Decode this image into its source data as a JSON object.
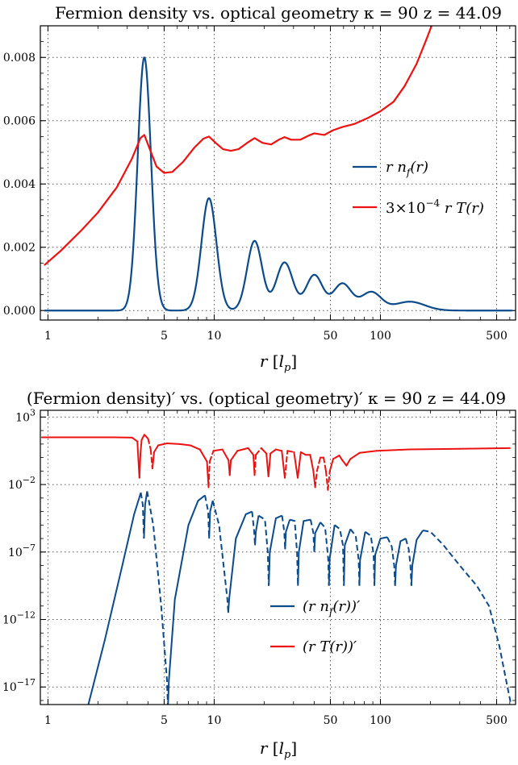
{
  "chart_data": [
    {
      "type": "line",
      "title": "Fermion density vs. optical geometry  κ = 90   z = 44.09",
      "xlabel": "r  [l_p]",
      "xlabel_parts": {
        "r": "r",
        "unit_open": "[",
        "unit_var": "l",
        "unit_sub": "p",
        "unit_close": "]"
      },
      "xscale": "log",
      "xlim": [
        0.9,
        650
      ],
      "xticks": [
        1,
        5,
        10,
        50,
        100,
        500
      ],
      "xtick_labels": [
        "1",
        "5",
        "10",
        "50",
        "100",
        "500"
      ],
      "ylim": [
        -0.0003,
        0.009
      ],
      "yticks": [
        0.0,
        0.002,
        0.004,
        0.006,
        0.008
      ],
      "ytick_labels": [
        "0.000",
        "0.002",
        "0.004",
        "0.006",
        "0.008"
      ],
      "grid": true,
      "legend_position": "right",
      "series": [
        {
          "name": "r n_f(r)",
          "name_parts": {
            "a": "r n",
            "sub": "f",
            "b": "(r)"
          },
          "color": "#0b4a8b",
          "peaks": [
            {
              "center": 3.8,
              "height": 0.008,
              "width": 0.04
            },
            {
              "center": 9.3,
              "height": 0.00355,
              "width": 0.045
            },
            {
              "center": 17.5,
              "height": 0.0022,
              "width": 0.045
            },
            {
              "center": 26.5,
              "height": 0.00152,
              "width": 0.05
            },
            {
              "center": 40,
              "height": 0.00112,
              "width": 0.05
            },
            {
              "center": 59,
              "height": 0.00085,
              "width": 0.055
            },
            {
              "center": 88,
              "height": 0.00058,
              "width": 0.06
            },
            {
              "center": 150,
              "height": 0.00028,
              "width": 0.09
            }
          ]
        },
        {
          "name": "3×10^-4 r T(r)",
          "name_parts": {
            "a": "3×10",
            "sup": "−4",
            "b": " r T(r)"
          },
          "color": "#ee1111",
          "points": [
            [
              0.95,
              0.00143
            ],
            [
              1.2,
              0.0019
            ],
            [
              1.6,
              0.00255
            ],
            [
              2.0,
              0.0031
            ],
            [
              2.6,
              0.0039
            ],
            [
              3.2,
              0.0048
            ],
            [
              3.6,
              0.00545
            ],
            [
              3.8,
              0.00555
            ],
            [
              4.1,
              0.0051
            ],
            [
              4.5,
              0.00455
            ],
            [
              5.0,
              0.00435
            ],
            [
              5.6,
              0.00438
            ],
            [
              6.5,
              0.0047
            ],
            [
              7.6,
              0.00515
            ],
            [
              8.6,
              0.00543
            ],
            [
              9.3,
              0.0055
            ],
            [
              10.2,
              0.0053
            ],
            [
              11.3,
              0.0051
            ],
            [
              12.6,
              0.00505
            ],
            [
              14.0,
              0.0051
            ],
            [
              15.8,
              0.0053
            ],
            [
              17.5,
              0.00545
            ],
            [
              19.5,
              0.0053
            ],
            [
              22.0,
              0.00525
            ],
            [
              24.5,
              0.0054
            ],
            [
              26.5,
              0.00548
            ],
            [
              29,
              0.0054
            ],
            [
              33,
              0.0054
            ],
            [
              37,
              0.00553
            ],
            [
              40,
              0.0056
            ],
            [
              46,
              0.00555
            ],
            [
              52,
              0.0057
            ],
            [
              59,
              0.0058
            ],
            [
              70,
              0.0059
            ],
            [
              85,
              0.0061
            ],
            [
              100,
              0.0063
            ],
            [
              120,
              0.0066
            ],
            [
              140,
              0.0071
            ],
            [
              165,
              0.0078
            ],
            [
              190,
              0.0086
            ],
            [
              210,
              0.0092
            ]
          ]
        }
      ]
    },
    {
      "type": "line",
      "title": "(Fermion density)′ vs. (optical geometry)′  κ = 90   z = 44.09",
      "xlabel": "r  [l_p]",
      "xlabel_parts": {
        "r": "r",
        "unit_open": "[",
        "unit_var": "l",
        "unit_sub": "p",
        "unit_close": "]"
      },
      "xscale": "log",
      "yscale": "log",
      "xlim": [
        0.9,
        650
      ],
      "xticks": [
        1,
        5,
        10,
        50,
        100,
        500
      ],
      "xtick_labels": [
        "1",
        "5",
        "10",
        "50",
        "100",
        "500"
      ],
      "ylim_log10": [
        -18.3,
        3.5
      ],
      "yticks_log10": [
        3,
        -2,
        -7,
        -12,
        -17
      ],
      "ytick_labels": [
        "10^3",
        "10^-2",
        "10^-7",
        "10^-12",
        "10^-17"
      ],
      "ytick_label_parts": [
        {
          "base": "10",
          "exp": "3"
        },
        {
          "base": "10",
          "exp": "−2"
        },
        {
          "base": "10",
          "exp": "−7"
        },
        {
          "base": "10",
          "exp": "−12"
        },
        {
          "base": "10",
          "exp": "−17"
        }
      ],
      "grid": true,
      "legend_position": "center-right",
      "line_style_note": "solid where derivative positive, dashed where negative",
      "series": [
        {
          "name": "(r n_f(r))′",
          "name_parts": {
            "a": "(r n",
            "sub": "f",
            "b": "(r))′"
          },
          "color": "#0b4a8b",
          "points_log10": [
            [
              1.75,
              -18.3
            ],
            [
              2.2,
              -13.5
            ],
            [
              2.8,
              -8
            ],
            [
              3.3,
              -4.2
            ],
            [
              3.62,
              -2.6
            ],
            [
              3.72,
              -3.5
            ],
            [
              3.78,
              -6
            ],
            [
              3.84,
              -3.5
            ],
            [
              3.95,
              -2.5
            ],
            [
              4.3,
              -5
            ],
            [
              4.8,
              -11
            ],
            [
              5.2,
              -16.5
            ],
            [
              5.27,
              -18.5
            ],
            [
              5.34,
              -16.5
            ],
            [
              5.8,
              -10.5
            ],
            [
              7.0,
              -5
            ],
            [
              8.0,
              -3.2
            ],
            [
              8.8,
              -2.8
            ],
            [
              9.2,
              -4
            ],
            [
              9.32,
              -6
            ],
            [
              9.45,
              -4
            ],
            [
              9.8,
              -3.2
            ],
            [
              10.7,
              -5
            ],
            [
              12.0,
              -10.5
            ],
            [
              12.15,
              -11.5
            ],
            [
              12.3,
              -10.5
            ],
            [
              13.5,
              -6
            ],
            [
              15.5,
              -4.2
            ],
            [
              16.9,
              -4.0
            ],
            [
              17.4,
              -5.5
            ],
            [
              17.6,
              -6.5
            ],
            [
              17.8,
              -5.5
            ],
            [
              18.5,
              -4.3
            ],
            [
              20.2,
              -4.6
            ],
            [
              21.0,
              -7
            ],
            [
              21.3,
              -9.5
            ],
            [
              21.6,
              -7
            ],
            [
              23.5,
              -4.5
            ],
            [
              25.6,
              -4.3
            ],
            [
              26.4,
              -5.5
            ],
            [
              26.7,
              -6.8
            ],
            [
              27.0,
              -5.5
            ],
            [
              28.5,
              -4.6
            ],
            [
              30.5,
              -4.7
            ],
            [
              31.5,
              -7
            ],
            [
              31.9,
              -9.5
            ],
            [
              32.3,
              -7
            ],
            [
              34.5,
              -4.7
            ],
            [
              38,
              -4.6
            ],
            [
              39.5,
              -5.6
            ],
            [
              40,
              -7
            ],
            [
              40.5,
              -5.6
            ],
            [
              43.5,
              -4.8
            ],
            [
              46.5,
              -5.2
            ],
            [
              48.5,
              -7.5
            ],
            [
              49,
              -9.5
            ],
            [
              49.5,
              -7.5
            ],
            [
              53,
              -5
            ],
            [
              57,
              -5.3
            ],
            [
              59.5,
              -6.5
            ],
            [
              60.3,
              -9.5
            ],
            [
              61,
              -6.5
            ],
            [
              66,
              -5.3
            ],
            [
              71,
              -5.8
            ],
            [
              74,
              -7.6
            ],
            [
              74.7,
              -9.5
            ],
            [
              75.4,
              -7.6
            ],
            [
              81,
              -5.5
            ],
            [
              87.5,
              -5.8
            ],
            [
              91,
              -7.2
            ],
            [
              92,
              -9.5
            ],
            [
              93,
              -7.2
            ],
            [
              100,
              -6
            ],
            [
              110,
              -5.9
            ],
            [
              117,
              -6.6
            ],
            [
              121,
              -8
            ],
            [
              122.5,
              -9.5
            ],
            [
              124,
              -8
            ],
            [
              132,
              -6.2
            ],
            [
              142,
              -6
            ],
            [
              148,
              -6.8
            ],
            [
              151.5,
              -8
            ],
            [
              153.5,
              -9.5
            ],
            [
              155.5,
              -8
            ],
            [
              165,
              -6.1
            ],
            [
              180,
              -5.4
            ],
            [
              200,
              -5.5
            ],
            [
              240,
              -6.5
            ],
            [
              300,
              -8
            ],
            [
              380,
              -9.5
            ],
            [
              450,
              -11
            ],
            [
              520,
              -14
            ],
            [
              570,
              -16.5
            ],
            [
              610,
              -18.3
            ]
          ]
        },
        {
          "name": "(r T(r))′",
          "name_parts": {
            "a": "(r T(r))′"
          },
          "color": "#ee1111",
          "points_log10": [
            [
              0.92,
              1.5
            ],
            [
              1.5,
              1.5
            ],
            [
              2.5,
              1.5
            ],
            [
              3.2,
              1.48
            ],
            [
              3.45,
              1.2
            ],
            [
              3.55,
              -1.5
            ],
            [
              3.6,
              0.3
            ],
            [
              3.66,
              1.3
            ],
            [
              3.8,
              1.7
            ],
            [
              4.0,
              1.4
            ],
            [
              4.15,
              0.6
            ],
            [
              4.25,
              -0.8
            ],
            [
              4.35,
              0.4
            ],
            [
              4.6,
              0.9
            ],
            [
              5.2,
              1.05
            ],
            [
              6.2,
              1.0
            ],
            [
              7.2,
              0.9
            ],
            [
              8.2,
              0.6
            ],
            [
              9.05,
              -0.3
            ],
            [
              9.25,
              -2.2
            ],
            [
              9.4,
              -0.3
            ],
            [
              9.9,
              0.5
            ],
            [
              11.2,
              0.6
            ],
            [
              12.2,
              -0.2
            ],
            [
              12.4,
              -1.3
            ],
            [
              12.6,
              -0.2
            ],
            [
              13.8,
              0.5
            ],
            [
              16,
              0.7
            ],
            [
              17.2,
              0.2
            ],
            [
              17.5,
              -1.3
            ],
            [
              17.8,
              0.2
            ],
            [
              19.2,
              0.7
            ],
            [
              20.6,
              0.3
            ],
            [
              21.2,
              -1.4
            ],
            [
              21.8,
              0.3
            ],
            [
              23.5,
              0.6
            ],
            [
              25.5,
              0.5
            ],
            [
              26.6,
              -1.5
            ],
            [
              27.6,
              0.5
            ],
            [
              30.2,
              0.4
            ],
            [
              31.8,
              -1.5
            ],
            [
              33.2,
              0.4
            ],
            [
              35.5,
              0.2
            ],
            [
              37.8,
              0.2
            ],
            [
              39.5,
              -1.0
            ],
            [
              40.5,
              -2.2
            ],
            [
              41.5,
              -1.0
            ],
            [
              43.5,
              0.0
            ],
            [
              45.5,
              0.0
            ],
            [
              47.0,
              -1.0
            ],
            [
              48.3,
              -2.4
            ],
            [
              49.6,
              -1.0
            ],
            [
              52,
              -0.1
            ],
            [
              56.5,
              0.15
            ],
            [
              59,
              -0.2
            ],
            [
              62.5,
              -0.6
            ],
            [
              66,
              -0.1
            ],
            [
              75,
              0.35
            ],
            [
              95,
              0.5
            ],
            [
              150,
              0.6
            ],
            [
              300,
              0.65
            ],
            [
              600,
              0.7
            ]
          ],
          "dashed_x_ranges": [
            [
              3.66,
              4.25
            ],
            [
              9.25,
              9.9
            ],
            [
              17.5,
              19.2
            ],
            [
              26.6,
              30.2
            ],
            [
              40.5,
              49.6
            ]
          ]
        }
      ]
    }
  ]
}
